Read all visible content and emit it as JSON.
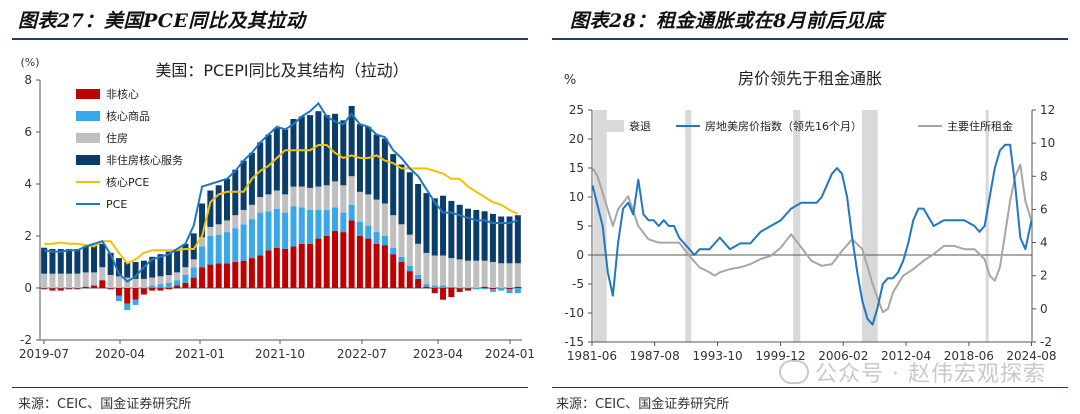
{
  "left": {
    "fig_title": "图表27：美国PCE同比及其拉动",
    "source": "来源：CEIC、国金证券研究所"
  },
  "right": {
    "fig_title": "图表28：租金通胀或在8月前后见底",
    "source": "来源：CEIC、国金证券研究所"
  },
  "watermark": "公众号 · 赵伟宏观探索",
  "chart_data": [
    {
      "type": "bar",
      "stacked": true,
      "title": "美国：PCEPI同比及其结构（拉动）",
      "yunit": "(%)",
      "ylim": [
        -2,
        8
      ],
      "yticks": [
        -2,
        0,
        2,
        4,
        6,
        8
      ],
      "xticklabels": [
        "2019-07",
        "2020-04",
        "2021-01",
        "2021-10",
        "2022-07",
        "2023-04",
        "2024-01"
      ],
      "legend_position": "top-left",
      "colors": {
        "non_core": "#c00000",
        "core_goods": "#3aa7e8",
        "housing": "#bfbfbf",
        "core_services_ex_housing": "#0b3d6b",
        "core_pce": "#f2c200",
        "pce": "#1f77c4"
      },
      "series": [
        {
          "name": "非核心",
          "key": "non_core",
          "values": [
            -0.05,
            -0.1,
            -0.1,
            -0.05,
            -0.05,
            0.05,
            0.1,
            0.3,
            -0.05,
            -0.3,
            -0.6,
            -0.45,
            -0.25,
            -0.1,
            -0.1,
            -0.05,
            0.1,
            0.2,
            0.4,
            0.8,
            0.9,
            0.95,
            0.95,
            1.0,
            1.05,
            1.15,
            1.25,
            1.45,
            1.55,
            1.5,
            1.6,
            1.7,
            1.7,
            1.9,
            2.0,
            2.2,
            2.15,
            2.6,
            2.0,
            1.9,
            1.7,
            1.65,
            1.3,
            1.0,
            0.65,
            0.35,
            0.05,
            -0.2,
            -0.45,
            -0.35,
            -0.15,
            -0.1,
            0.0,
            0.05,
            -0.05,
            0.0,
            -0.05,
            0.05
          ]
        },
        {
          "name": "核心商品",
          "key": "core_goods",
          "values": [
            0.0,
            0.0,
            0.0,
            0.0,
            0.0,
            0.0,
            0.0,
            0.0,
            0.0,
            -0.2,
            -0.25,
            -0.2,
            0.0,
            0.1,
            0.15,
            0.2,
            0.2,
            0.3,
            0.4,
            0.8,
            1.1,
            1.1,
            1.2,
            1.3,
            1.4,
            1.5,
            1.65,
            1.5,
            1.5,
            1.4,
            1.55,
            1.4,
            1.3,
            1.1,
            1.0,
            0.9,
            0.75,
            0.6,
            0.55,
            0.5,
            0.45,
            0.35,
            0.25,
            0.2,
            0.2,
            0.15,
            0.1,
            0.1,
            0.1,
            0.05,
            0.0,
            0.0,
            -0.05,
            -0.05,
            -0.1,
            -0.1,
            -0.15,
            -0.2
          ]
        },
        {
          "name": "住房",
          "key": "housing",
          "values": [
            0.55,
            0.55,
            0.55,
            0.55,
            0.55,
            0.55,
            0.5,
            0.5,
            0.5,
            0.45,
            0.4,
            0.35,
            0.35,
            0.3,
            0.3,
            0.3,
            0.3,
            0.3,
            0.3,
            0.35,
            0.35,
            0.4,
            0.45,
            0.5,
            0.55,
            0.55,
            0.6,
            0.65,
            0.7,
            0.7,
            0.75,
            0.8,
            0.85,
            0.9,
            0.95,
            1.0,
            1.05,
            1.1,
            1.15,
            1.2,
            1.25,
            1.25,
            1.25,
            1.25,
            1.2,
            1.2,
            1.2,
            1.15,
            1.15,
            1.1,
            1.1,
            1.05,
            1.05,
            1.0,
            1.0,
            0.95,
            0.95,
            0.9
          ]
        },
        {
          "name": "非住房核心服务",
          "key": "core_services_ex_housing",
          "values": [
            1.0,
            0.95,
            0.95,
            0.95,
            0.95,
            1.0,
            1.05,
            0.9,
            0.85,
            0.7,
            0.6,
            0.65,
            0.7,
            0.8,
            0.85,
            0.9,
            0.9,
            0.9,
            1.0,
            1.3,
            1.4,
            1.5,
            1.6,
            1.75,
            1.9,
            2.0,
            2.1,
            2.3,
            2.4,
            2.5,
            2.6,
            2.7,
            2.8,
            2.9,
            2.7,
            2.6,
            2.5,
            2.7,
            2.6,
            2.6,
            2.5,
            2.5,
            2.35,
            2.3,
            2.4,
            2.3,
            2.3,
            2.2,
            2.3,
            2.2,
            2.1,
            2.0,
            1.95,
            1.9,
            1.85,
            1.8,
            1.8,
            1.85
          ]
        },
        {
          "name": "核心PCE",
          "key": "core_pce",
          "type": "line",
          "values": [
            1.7,
            1.7,
            1.75,
            1.7,
            1.7,
            1.65,
            1.6,
            1.8,
            1.8,
            1.35,
            0.95,
            1.1,
            1.35,
            1.45,
            1.45,
            1.45,
            1.45,
            1.5,
            1.5,
            2.0,
            3.3,
            3.6,
            3.7,
            3.7,
            3.7,
            4.2,
            4.5,
            4.7,
            5.0,
            5.3,
            5.3,
            5.3,
            5.3,
            5.5,
            5.5,
            5.2,
            5.0,
            5.1,
            5.0,
            5.0,
            5.1,
            4.9,
            4.8,
            4.6,
            4.6,
            4.6,
            4.6,
            4.5,
            4.4,
            4.2,
            4.2,
            3.9,
            3.7,
            3.5,
            3.3,
            3.2,
            3.0,
            2.85
          ]
        },
        {
          "name": "PCE",
          "key": "pce",
          "type": "line",
          "values": [
            1.45,
            1.4,
            1.4,
            1.45,
            1.45,
            1.6,
            1.7,
            1.8,
            1.3,
            0.55,
            0.25,
            0.45,
            0.8,
            1.1,
            1.2,
            1.3,
            1.5,
            1.7,
            2.4,
            3.9,
            4.0,
            4.1,
            4.2,
            4.5,
            4.9,
            5.2,
            5.6,
            5.9,
            6.2,
            6.1,
            6.3,
            6.6,
            6.8,
            7.1,
            6.6,
            6.4,
            6.3,
            6.7,
            6.3,
            6.2,
            5.9,
            5.8,
            5.3,
            5.0,
            4.6,
            4.3,
            3.8,
            3.3,
            2.9,
            2.9,
            2.8,
            2.7,
            2.6,
            2.6,
            2.5,
            2.5,
            2.5,
            2.6
          ]
        }
      ]
    },
    {
      "type": "line",
      "title": "房价领先于租金通胀",
      "yunit": "%",
      "ylim": [
        -15,
        25
      ],
      "yticks": [
        -15,
        -10,
        -5,
        0,
        5,
        10,
        15,
        20,
        25
      ],
      "y2lim": [
        -2,
        12
      ],
      "y2ticks": [
        -2,
        0,
        2,
        4,
        6,
        8,
        10,
        12
      ],
      "xticklabels": [
        "1981-06",
        "1987-08",
        "1993-10",
        "1999-12",
        "2006-02",
        "2012-04",
        "2018-06",
        "2024-08"
      ],
      "xrange": [
        1981.45,
        2024.65
      ],
      "legend_position": "top",
      "recessions": [
        [
          1981.6,
          1982.9
        ],
        [
          1990.6,
          1991.2
        ],
        [
          2001.2,
          2001.9
        ],
        [
          2007.95,
          2009.5
        ],
        [
          2020.1,
          2020.4
        ]
      ],
      "series": [
        {
          "name": "衰退",
          "key": "recession",
          "type": "area",
          "color": "#d9d9d9"
        },
        {
          "name": "房地美房价指数（领先16个月）",
          "key": "hpi",
          "axis": "left",
          "color": "#1f77c4",
          "x": [
            1981.5,
            1982.5,
            1983.0,
            1983.5,
            1984.0,
            1984.5,
            1985.0,
            1985.5,
            1986.0,
            1986.5,
            1987.0,
            1987.5,
            1988.0,
            1988.5,
            1989.0,
            1989.5,
            1990.0,
            1990.5,
            1991.0,
            1991.5,
            1992.0,
            1992.5,
            1993.0,
            1993.5,
            1994.0,
            1994.5,
            1995.0,
            1996.0,
            1997.0,
            1998.0,
            1999.0,
            2000.0,
            2001.0,
            2002.0,
            2003.0,
            2003.5,
            2004.0,
            2004.5,
            2005.0,
            2005.5,
            2006.0,
            2006.5,
            2007.0,
            2007.5,
            2008.0,
            2008.5,
            2009.0,
            2009.5,
            2010.0,
            2010.5,
            2011.0,
            2011.5,
            2012.0,
            2012.5,
            2013.0,
            2013.5,
            2014.0,
            2015.0,
            2016.0,
            2017.0,
            2018.0,
            2019.0,
            2019.5,
            2020.0,
            2020.5,
            2021.0,
            2021.5,
            2022.0,
            2022.5,
            2023.0,
            2023.5,
            2024.0,
            2024.6
          ],
          "y": [
            12,
            5,
            -3,
            -7,
            2,
            8,
            9,
            7,
            13,
            7,
            6,
            6,
            5,
            6,
            5,
            5,
            3,
            2,
            1,
            0,
            1,
            1,
            1,
            2,
            3,
            2,
            1,
            2,
            2,
            4,
            5,
            6,
            8,
            9,
            9,
            9,
            10,
            12,
            14,
            15,
            14,
            10,
            3,
            -3,
            -8,
            -11,
            -12,
            -9,
            -5,
            -4,
            -4,
            -3,
            -1,
            2,
            6,
            8,
            8,
            5,
            6,
            6,
            6,
            5,
            4,
            5,
            10,
            15,
            18,
            19,
            19,
            12,
            3,
            1,
            6
          ]
        },
        {
          "name": "主要住所租金",
          "key": "rent",
          "axis": "right",
          "color": "#a6a6a6",
          "x": [
            1981.5,
            1982.0,
            1982.5,
            1983.0,
            1983.5,
            1984.0,
            1985.0,
            1986.0,
            1987.0,
            1988.0,
            1989.0,
            1990.0,
            1991.0,
            1992.0,
            1993.0,
            1993.5,
            1994.0,
            1995.0,
            1996.0,
            1997.0,
            1998.0,
            1999.0,
            2000.0,
            2001.0,
            2002.0,
            2003.0,
            2004.0,
            2005.0,
            2006.0,
            2007.0,
            2008.0,
            2009.0,
            2010.0,
            2010.5,
            2011.0,
            2012.0,
            2013.0,
            2014.0,
            2015.0,
            2016.0,
            2017.0,
            2018.0,
            2019.0,
            2020.0,
            2020.5,
            2021.0,
            2021.5,
            2022.0,
            2022.5,
            2023.0,
            2023.5,
            2024.0,
            2024.6
          ],
          "y": [
            8.5,
            8.0,
            7.0,
            6.0,
            5.0,
            6.0,
            6.8,
            5.0,
            4.2,
            4.0,
            4.0,
            4.0,
            3.2,
            2.5,
            2.2,
            2.0,
            2.2,
            2.4,
            2.5,
            2.7,
            3.0,
            3.2,
            3.7,
            4.5,
            3.7,
            2.9,
            2.6,
            2.7,
            3.5,
            4.2,
            3.6,
            1.5,
            -0.2,
            0.0,
            1.0,
            2.0,
            2.4,
            2.9,
            3.3,
            3.8,
            3.8,
            3.6,
            3.6,
            3.0,
            2.0,
            1.7,
            2.5,
            4.5,
            6.5,
            8.0,
            8.7,
            6.5,
            5.3
          ]
        }
      ]
    }
  ]
}
